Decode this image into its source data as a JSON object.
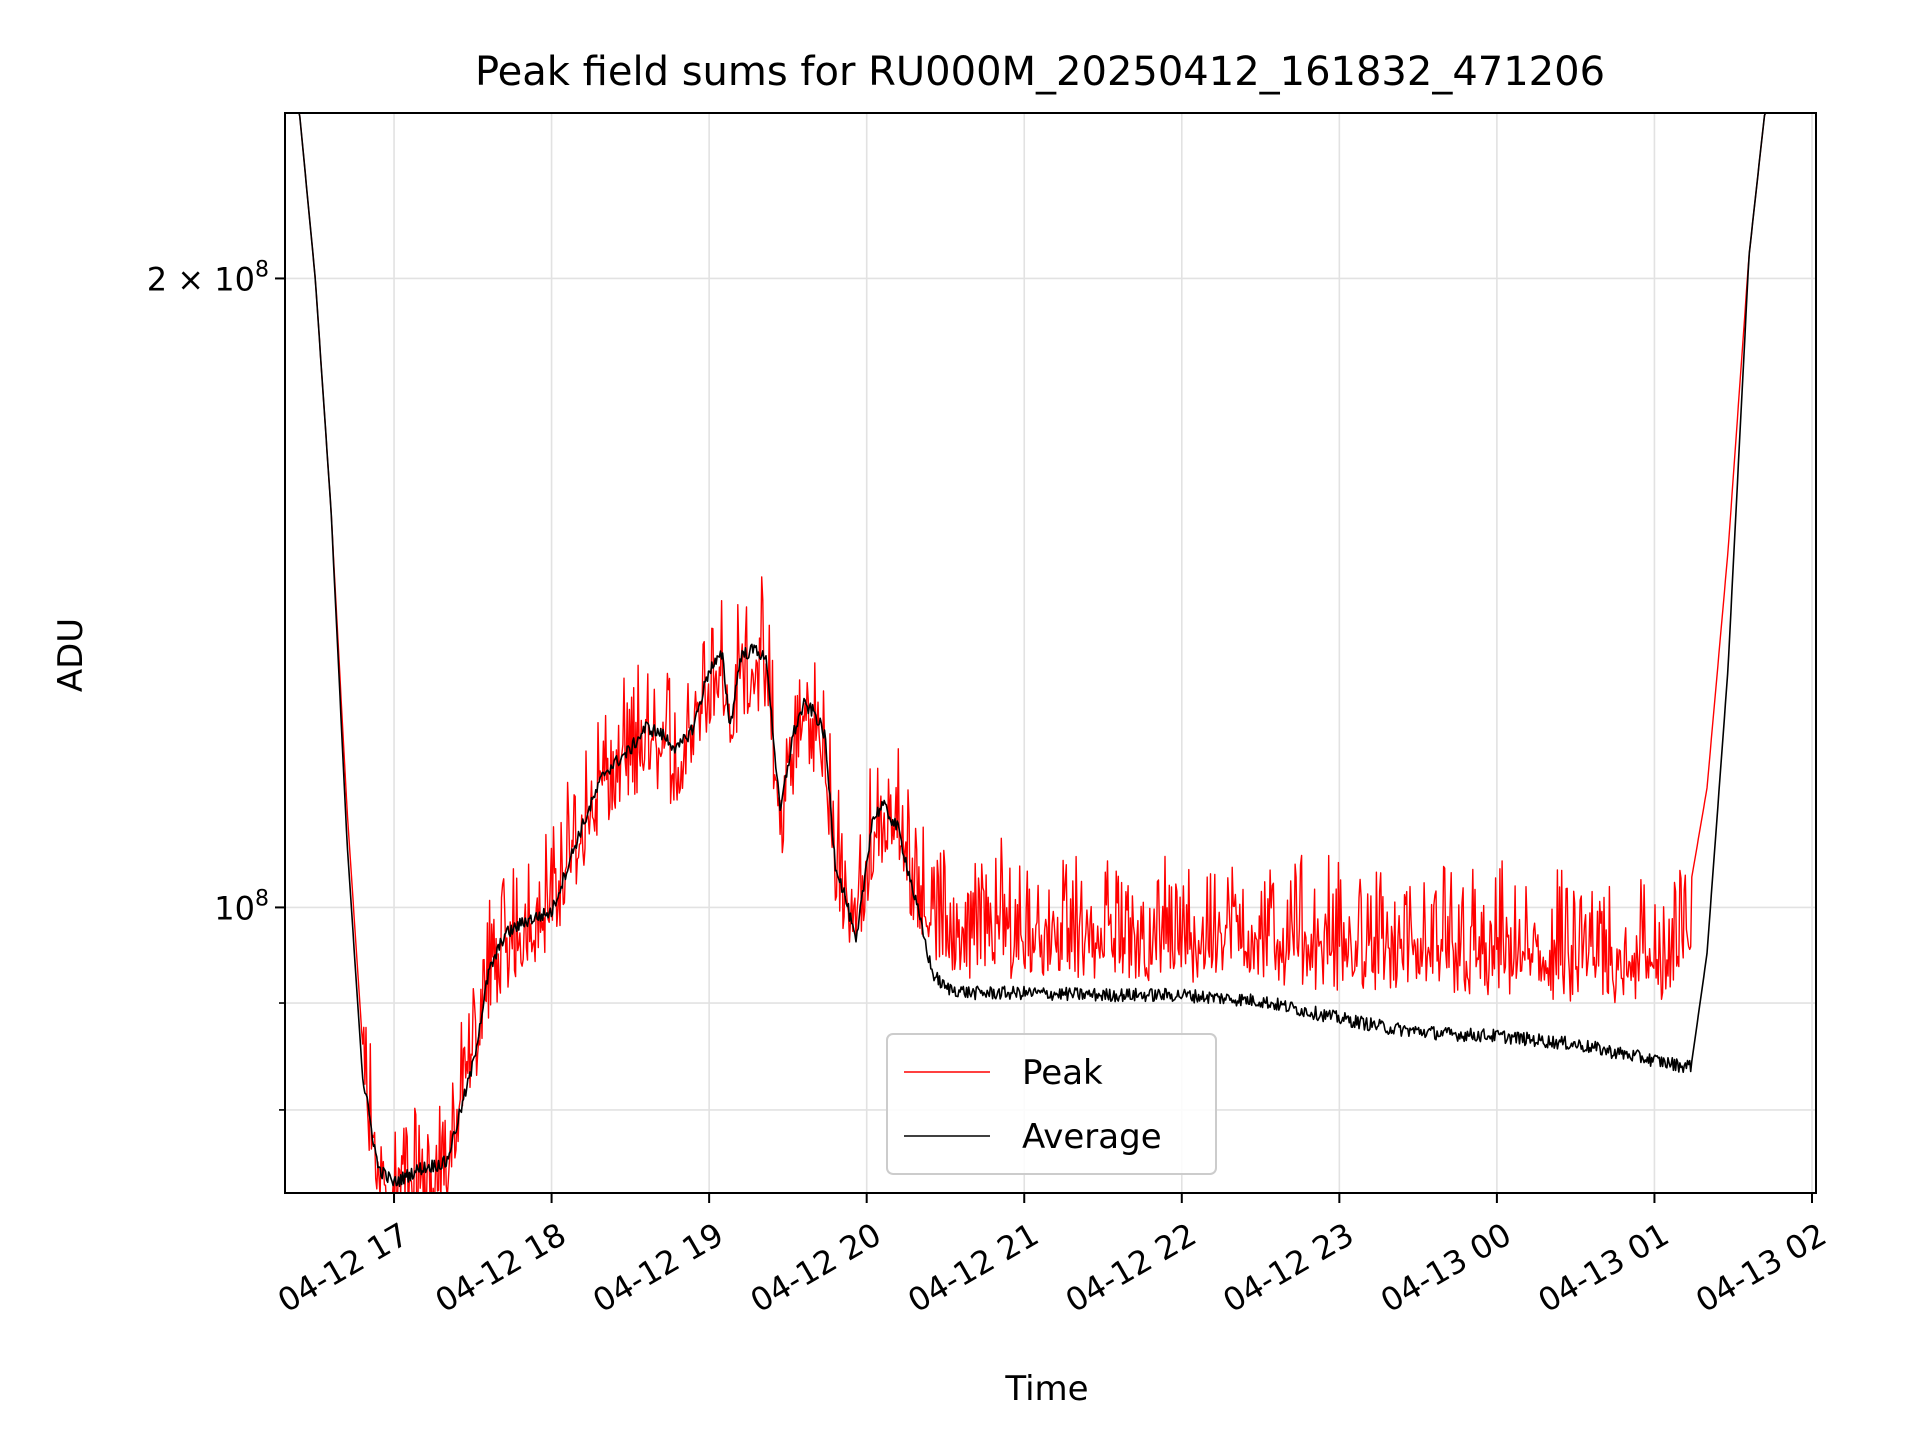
{
  "chart_data": {
    "type": "line",
    "title": "Peak field sums for RU000M_20250412_161832_471206",
    "xlabel": "Time",
    "ylabel": "ADU",
    "x_axis": {
      "kind": "datetime",
      "range": [
        "2025-04-12 16:20",
        "2025-04-13 02:00"
      ],
      "ticks": [
        {
          "value": "2025-04-12 17:00",
          "label": "04-12 17"
        },
        {
          "value": "2025-04-12 18:00",
          "label": "04-12 18"
        },
        {
          "value": "2025-04-12 19:00",
          "label": "04-12 19"
        },
        {
          "value": "2025-04-12 20:00",
          "label": "04-12 20"
        },
        {
          "value": "2025-04-12 21:00",
          "label": "04-12 21"
        },
        {
          "value": "2025-04-12 22:00",
          "label": "04-12 22"
        },
        {
          "value": "2025-04-12 23:00",
          "label": "04-12 23"
        },
        {
          "value": "2025-04-13 00:00",
          "label": "04-13 00"
        },
        {
          "value": "2025-04-13 01:00",
          "label": "04-13 01"
        },
        {
          "value": "2025-04-13 02:00",
          "label": "04-13 02"
        }
      ]
    },
    "y_axis": {
      "scale": "log",
      "range": [
        73000000,
        240000000
      ],
      "major_ticks": [
        {
          "value": 100000000,
          "base": "10",
          "exp": "8",
          "prefix": ""
        },
        {
          "value": 200000000,
          "base": "10",
          "exp": "8",
          "prefix": "2 × "
        }
      ],
      "minor_ticks": [
        80000000,
        90000000
      ]
    },
    "grid": true,
    "legend": {
      "position": "lower-center",
      "entries": [
        "Peak",
        "Average"
      ]
    },
    "series": [
      {
        "name": "Peak",
        "color": "#ff0000",
        "noise": "dense upward spikes above Average",
        "x": [
          "2025-04-12 16:20",
          "2025-04-12 16:24",
          "2025-04-12 16:30",
          "2025-04-12 16:36",
          "2025-04-12 16:42",
          "2025-04-12 16:48",
          "2025-04-12 16:54",
          "2025-04-12 17:00",
          "2025-04-12 17:10",
          "2025-04-12 17:20",
          "2025-04-12 17:30",
          "2025-04-12 17:36",
          "2025-04-12 17:42",
          "2025-04-12 17:50",
          "2025-04-12 18:00",
          "2025-04-12 18:10",
          "2025-04-12 18:20",
          "2025-04-12 18:30",
          "2025-04-12 18:36",
          "2025-04-12 18:42",
          "2025-04-12 18:48",
          "2025-04-12 18:54",
          "2025-04-12 19:00",
          "2025-04-12 19:05",
          "2025-04-12 19:08",
          "2025-04-12 19:12",
          "2025-04-12 19:18",
          "2025-04-12 19:22",
          "2025-04-12 19:27",
          "2025-04-12 19:32",
          "2025-04-12 19:36",
          "2025-04-12 19:40",
          "2025-04-12 19:44",
          "2025-04-12 19:48",
          "2025-04-12 19:52",
          "2025-04-12 19:56",
          "2025-04-12 20:02",
          "2025-04-12 20:06",
          "2025-04-12 20:12",
          "2025-04-12 20:16",
          "2025-04-12 20:20",
          "2025-04-12 20:25",
          "2025-04-12 20:30",
          "2025-04-12 20:40",
          "2025-04-12 21:00",
          "2025-04-12 21:30",
          "2025-04-12 22:00",
          "2025-04-12 22:30",
          "2025-04-12 23:00",
          "2025-04-12 23:20",
          "2025-04-12 23:40",
          "2025-04-13 00:00",
          "2025-04-13 00:30",
          "2025-04-13 01:00",
          "2025-04-13 01:10",
          "2025-04-13 01:14",
          "2025-04-13 01:20",
          "2025-04-13 01:28",
          "2025-04-13 01:36",
          "2025-04-13 01:42",
          "2025-04-13 01:58"
        ],
        "y": [
          245000000,
          240000000,
          200000000,
          155000000,
          112000000,
          86000000,
          77000000,
          76000000,
          76500000,
          77500000,
          88000000,
          96000000,
          99000000,
          101000000,
          104000000,
          112000000,
          118000000,
          121000000,
          124000000,
          123000000,
          121000000,
          126000000,
          133000000,
          135000000,
          125000000,
          134000000,
          135000000,
          133000000,
          113000000,
          123000000,
          127000000,
          126000000,
          123000000,
          108000000,
          104000000,
          102000000,
          112000000,
          114000000,
          112000000,
          108000000,
          106000000,
          103000000,
          101000000,
          100500000,
          100500000,
          100500000,
          100000000,
          100000000,
          99000000,
          98800000,
          98500000,
          98000000,
          98000000,
          97500000,
          99000000,
          103000000,
          114000000,
          148000000,
          205000000,
          240000000,
          245000000
        ]
      },
      {
        "name": "Average",
        "color": "#000000",
        "noise": "thin jitter",
        "x": [
          "2025-04-12 16:20",
          "2025-04-12 16:24",
          "2025-04-12 16:30",
          "2025-04-12 16:36",
          "2025-04-12 16:42",
          "2025-04-12 16:48",
          "2025-04-12 16:54",
          "2025-04-12 17:00",
          "2025-04-12 17:10",
          "2025-04-12 17:20",
          "2025-04-12 17:30",
          "2025-04-12 17:36",
          "2025-04-12 17:42",
          "2025-04-12 17:50",
          "2025-04-12 18:00",
          "2025-04-12 18:10",
          "2025-04-12 18:20",
          "2025-04-12 18:30",
          "2025-04-12 18:36",
          "2025-04-12 18:42",
          "2025-04-12 18:48",
          "2025-04-12 18:54",
          "2025-04-12 19:00",
          "2025-04-12 19:05",
          "2025-04-12 19:08",
          "2025-04-12 19:12",
          "2025-04-12 19:18",
          "2025-04-12 19:22",
          "2025-04-12 19:27",
          "2025-04-12 19:32",
          "2025-04-12 19:36",
          "2025-04-12 19:40",
          "2025-04-12 19:44",
          "2025-04-12 19:48",
          "2025-04-12 19:52",
          "2025-04-12 19:56",
          "2025-04-12 20:02",
          "2025-04-12 20:06",
          "2025-04-12 20:12",
          "2025-04-12 20:16",
          "2025-04-12 20:20",
          "2025-04-12 20:25",
          "2025-04-12 20:30",
          "2025-04-12 20:40",
          "2025-04-12 21:00",
          "2025-04-12 21:30",
          "2025-04-12 22:00",
          "2025-04-12 22:30",
          "2025-04-12 23:00",
          "2025-04-12 23:20",
          "2025-04-12 23:40",
          "2025-04-13 00:00",
          "2025-04-13 00:30",
          "2025-04-13 01:00",
          "2025-04-13 01:10",
          "2025-04-13 01:14",
          "2025-04-13 01:20",
          "2025-04-13 01:28",
          "2025-04-13 01:36",
          "2025-04-13 01:42",
          "2025-04-13 01:58"
        ],
        "y": [
          245000000,
          240000000,
          200000000,
          155000000,
          108000000,
          83000000,
          75000000,
          73800000,
          75000000,
          75500000,
          84000000,
          93000000,
          97000000,
          98500000,
          99500000,
          108000000,
          116000000,
          119000000,
          122000000,
          121000000,
          119000000,
          122000000,
          130000000,
          132000000,
          122000000,
          132000000,
          133000000,
          131000000,
          111000000,
          121000000,
          125000000,
          124000000,
          121000000,
          105000000,
          101000000,
          96000000,
          110000000,
          112000000,
          109000000,
          104000000,
          99000000,
          93000000,
          91500000,
          91000000,
          91000000,
          90800000,
          90800000,
          90200000,
          88500000,
          87500000,
          87000000,
          86800000,
          86000000,
          84500000,
          84000000,
          84000000,
          95000000,
          130000000,
          205000000,
          240000000,
          245000000
        ]
      }
    ]
  }
}
